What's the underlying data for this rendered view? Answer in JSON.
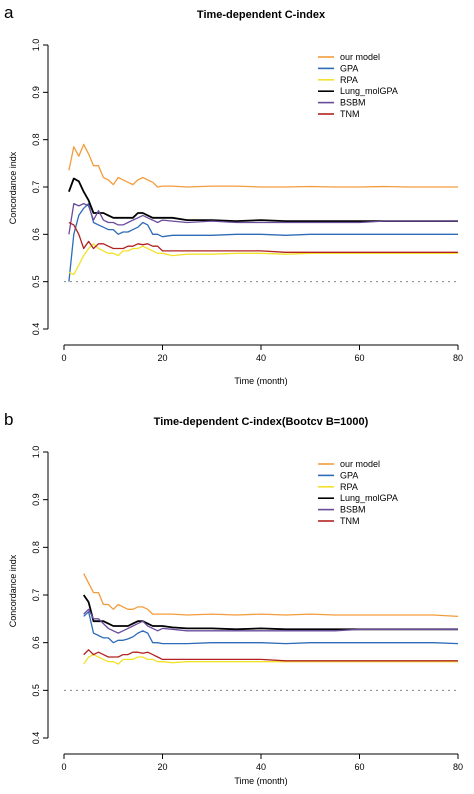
{
  "chart_data": [
    {
      "panel_label": "a",
      "type": "line",
      "title": "Time-dependent C-index",
      "xlabel": "Time (month)",
      "ylabel": "Concordance indx",
      "xlim": [
        0,
        80
      ],
      "ylim": [
        0.4,
        1.0
      ],
      "xticks": [
        "0",
        "20",
        "40",
        "60",
        "80"
      ],
      "yticks": [
        "0.4",
        "0.5",
        "0.6",
        "0.7",
        "0.8",
        "0.9",
        "1.0"
      ],
      "reference_line": 0.5,
      "legend_position": "top-right",
      "series": [
        {
          "name": "our model",
          "color": "#F39C3C",
          "x": [
            1,
            2,
            3,
            4,
            5,
            6,
            7,
            8,
            9,
            10,
            11,
            12,
            13,
            14,
            15,
            16,
            17,
            18,
            19,
            20,
            22,
            25,
            30,
            35,
            40,
            45,
            50,
            55,
            60,
            65,
            70,
            75,
            80
          ],
          "y": [
            0.735,
            0.785,
            0.765,
            0.79,
            0.77,
            0.745,
            0.745,
            0.72,
            0.715,
            0.705,
            0.72,
            0.715,
            0.71,
            0.705,
            0.715,
            0.72,
            0.715,
            0.71,
            0.7,
            0.702,
            0.702,
            0.7,
            0.702,
            0.702,
            0.7,
            0.7,
            0.701,
            0.7,
            0.7,
            0.701,
            0.7,
            0.7,
            0.7
          ]
        },
        {
          "name": "GPA",
          "color": "#2E6BB8",
          "x": [
            1,
            2,
            3,
            4,
            5,
            6,
            7,
            8,
            9,
            10,
            11,
            12,
            13,
            14,
            15,
            16,
            17,
            18,
            19,
            20,
            22,
            25,
            30,
            35,
            40,
            45,
            50,
            55,
            60,
            65,
            70,
            75,
            80
          ],
          "y": [
            0.5,
            0.6,
            0.64,
            0.655,
            0.665,
            0.625,
            0.62,
            0.615,
            0.61,
            0.61,
            0.6,
            0.605,
            0.605,
            0.61,
            0.615,
            0.625,
            0.62,
            0.6,
            0.6,
            0.595,
            0.598,
            0.598,
            0.598,
            0.6,
            0.6,
            0.598,
            0.6,
            0.6,
            0.6,
            0.6,
            0.6,
            0.6,
            0.6
          ]
        },
        {
          "name": "RPA",
          "color": "#F2E22C",
          "x": [
            1,
            2,
            3,
            4,
            5,
            6,
            7,
            8,
            9,
            10,
            11,
            12,
            13,
            14,
            15,
            16,
            17,
            18,
            19,
            20,
            22,
            25,
            30,
            35,
            40,
            45,
            50,
            55,
            60,
            65,
            70,
            75,
            80
          ],
          "y": [
            0.52,
            0.515,
            0.535,
            0.555,
            0.57,
            0.58,
            0.57,
            0.565,
            0.56,
            0.56,
            0.555,
            0.565,
            0.565,
            0.57,
            0.57,
            0.575,
            0.57,
            0.565,
            0.56,
            0.56,
            0.555,
            0.558,
            0.558,
            0.56,
            0.56,
            0.558,
            0.56,
            0.56,
            0.56,
            0.56,
            0.56,
            0.56,
            0.56
          ]
        },
        {
          "name": "Lung_molGPA",
          "color": "#000000",
          "x": [
            1,
            2,
            3,
            4,
            5,
            6,
            7,
            8,
            9,
            10,
            11,
            12,
            13,
            14,
            15,
            16,
            17,
            18,
            19,
            20,
            22,
            25,
            30,
            35,
            40,
            45,
            50,
            55,
            60,
            65,
            70,
            75,
            80
          ],
          "y": [
            0.69,
            0.718,
            0.712,
            0.69,
            0.672,
            0.645,
            0.645,
            0.645,
            0.64,
            0.635,
            0.635,
            0.635,
            0.635,
            0.635,
            0.645,
            0.645,
            0.64,
            0.635,
            0.635,
            0.635,
            0.635,
            0.63,
            0.63,
            0.628,
            0.63,
            0.628,
            0.628,
            0.628,
            0.628,
            0.628,
            0.628,
            0.628,
            0.628
          ]
        },
        {
          "name": "BSBM",
          "color": "#6A4C9C",
          "x": [
            1,
            2,
            3,
            4,
            5,
            6,
            7,
            8,
            9,
            10,
            11,
            12,
            13,
            14,
            15,
            16,
            17,
            18,
            19,
            20,
            22,
            25,
            30,
            35,
            40,
            45,
            50,
            55,
            60,
            65,
            70,
            75,
            80
          ],
          "y": [
            0.6,
            0.665,
            0.66,
            0.665,
            0.66,
            0.63,
            0.65,
            0.63,
            0.625,
            0.625,
            0.62,
            0.62,
            0.625,
            0.63,
            0.635,
            0.64,
            0.635,
            0.63,
            0.625,
            0.63,
            0.628,
            0.625,
            0.628,
            0.625,
            0.625,
            0.625,
            0.625,
            0.625,
            0.625,
            0.628,
            0.628,
            0.628,
            0.628
          ]
        },
        {
          "name": "TNM",
          "color": "#B22222",
          "x": [
            1,
            2,
            3,
            4,
            5,
            6,
            7,
            8,
            9,
            10,
            11,
            12,
            13,
            14,
            15,
            16,
            17,
            18,
            19,
            20,
            22,
            25,
            30,
            35,
            40,
            45,
            50,
            55,
            60,
            65,
            70,
            75,
            80
          ],
          "y": [
            0.625,
            0.62,
            0.6,
            0.57,
            0.585,
            0.57,
            0.58,
            0.58,
            0.575,
            0.57,
            0.57,
            0.57,
            0.575,
            0.575,
            0.58,
            0.578,
            0.58,
            0.575,
            0.575,
            0.565,
            0.565,
            0.565,
            0.565,
            0.565,
            0.565,
            0.562,
            0.562,
            0.562,
            0.562,
            0.562,
            0.562,
            0.562,
            0.562
          ]
        }
      ]
    },
    {
      "panel_label": "b",
      "type": "line",
      "title": "Time-dependent C-index(Bootcv B=1000)",
      "xlabel": "Time (month)",
      "ylabel": "Concordance indx",
      "xlim": [
        0,
        80
      ],
      "ylim": [
        0.4,
        1.0
      ],
      "xticks": [
        "0",
        "20",
        "40",
        "60",
        "80"
      ],
      "yticks": [
        "0.4",
        "0.5",
        "0.6",
        "0.7",
        "0.8",
        "0.9",
        "1.0"
      ],
      "reference_line": 0.5,
      "legend_position": "top-right",
      "series": [
        {
          "name": "our model",
          "color": "#F39C3C",
          "x": [
            4,
            5,
            6,
            7,
            8,
            9,
            10,
            11,
            12,
            13,
            14,
            15,
            16,
            17,
            18,
            19,
            20,
            22,
            25,
            30,
            35,
            40,
            45,
            50,
            55,
            60,
            65,
            70,
            75,
            80
          ],
          "y": [
            0.745,
            0.725,
            0.705,
            0.705,
            0.68,
            0.68,
            0.67,
            0.68,
            0.675,
            0.67,
            0.67,
            0.675,
            0.675,
            0.67,
            0.66,
            0.66,
            0.66,
            0.66,
            0.658,
            0.66,
            0.658,
            0.66,
            0.658,
            0.66,
            0.658,
            0.658,
            0.658,
            0.658,
            0.658,
            0.655
          ]
        },
        {
          "name": "GPA",
          "color": "#2E6BB8",
          "x": [
            4,
            5,
            6,
            7,
            8,
            9,
            10,
            11,
            12,
            13,
            14,
            15,
            16,
            17,
            18,
            19,
            20,
            22,
            25,
            30,
            35,
            40,
            45,
            50,
            55,
            60,
            65,
            70,
            75,
            80
          ],
          "y": [
            0.655,
            0.665,
            0.62,
            0.615,
            0.61,
            0.61,
            0.6,
            0.605,
            0.605,
            0.608,
            0.612,
            0.62,
            0.625,
            0.62,
            0.6,
            0.6,
            0.598,
            0.598,
            0.598,
            0.6,
            0.6,
            0.6,
            0.598,
            0.6,
            0.6,
            0.6,
            0.6,
            0.6,
            0.6,
            0.598
          ]
        },
        {
          "name": "RPA",
          "color": "#F2E22C",
          "x": [
            4,
            5,
            6,
            7,
            8,
            9,
            10,
            11,
            12,
            13,
            14,
            15,
            16,
            17,
            18,
            19,
            20,
            22,
            25,
            30,
            35,
            40,
            45,
            50,
            55,
            60,
            65,
            70,
            75,
            80
          ],
          "y": [
            0.555,
            0.57,
            0.575,
            0.57,
            0.565,
            0.56,
            0.56,
            0.555,
            0.565,
            0.565,
            0.565,
            0.57,
            0.57,
            0.565,
            0.565,
            0.56,
            0.56,
            0.558,
            0.56,
            0.56,
            0.56,
            0.56,
            0.56,
            0.56,
            0.56,
            0.56,
            0.56,
            0.56,
            0.56,
            0.56
          ]
        },
        {
          "name": "Lung_molGPA",
          "color": "#000000",
          "x": [
            4,
            5,
            6,
            7,
            8,
            9,
            10,
            11,
            12,
            13,
            14,
            15,
            16,
            17,
            18,
            19,
            20,
            22,
            25,
            30,
            35,
            40,
            45,
            50,
            55,
            60,
            65,
            70,
            75,
            80
          ],
          "y": [
            0.7,
            0.685,
            0.645,
            0.645,
            0.645,
            0.64,
            0.635,
            0.635,
            0.635,
            0.635,
            0.64,
            0.645,
            0.645,
            0.64,
            0.635,
            0.635,
            0.635,
            0.632,
            0.63,
            0.63,
            0.628,
            0.63,
            0.628,
            0.628,
            0.628,
            0.628,
            0.628,
            0.628,
            0.628,
            0.628
          ]
        },
        {
          "name": "BSBM",
          "color": "#6A4C9C",
          "x": [
            4,
            5,
            6,
            7,
            8,
            9,
            10,
            11,
            12,
            13,
            14,
            15,
            16,
            17,
            18,
            19,
            20,
            22,
            25,
            30,
            35,
            40,
            45,
            50,
            55,
            60,
            65,
            70,
            75,
            80
          ],
          "y": [
            0.66,
            0.67,
            0.65,
            0.65,
            0.64,
            0.63,
            0.625,
            0.62,
            0.625,
            0.63,
            0.635,
            0.64,
            0.645,
            0.635,
            0.63,
            0.625,
            0.63,
            0.628,
            0.625,
            0.625,
            0.625,
            0.625,
            0.625,
            0.625,
            0.625,
            0.628,
            0.628,
            0.628,
            0.628,
            0.628
          ]
        },
        {
          "name": "TNM",
          "color": "#B22222",
          "x": [
            4,
            5,
            6,
            7,
            8,
            9,
            10,
            11,
            12,
            13,
            14,
            15,
            16,
            17,
            18,
            19,
            20,
            22,
            25,
            30,
            35,
            40,
            45,
            50,
            55,
            60,
            65,
            70,
            75,
            80
          ],
          "y": [
            0.575,
            0.585,
            0.575,
            0.58,
            0.575,
            0.57,
            0.57,
            0.57,
            0.575,
            0.575,
            0.58,
            0.58,
            0.578,
            0.58,
            0.575,
            0.57,
            0.565,
            0.565,
            0.565,
            0.565,
            0.565,
            0.565,
            0.562,
            0.562,
            0.562,
            0.562,
            0.562,
            0.562,
            0.562,
            0.562
          ]
        }
      ]
    }
  ]
}
